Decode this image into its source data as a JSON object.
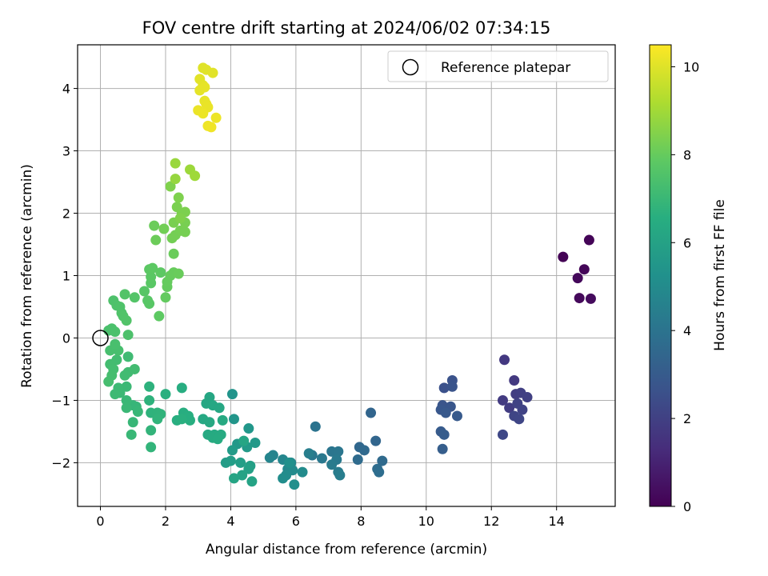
{
  "chart_data": {
    "type": "scatter",
    "title": "FOV centre drift starting at 2024/06/02 07:34:15",
    "xlabel": "Angular distance from reference (arcmin)",
    "ylabel": "Rotation from reference (arcmin)",
    "xlim": [
      -0.7,
      15.8
    ],
    "ylim": [
      -2.7,
      4.7
    ],
    "xticks": [
      "0",
      "2",
      "4",
      "6",
      "8",
      "10",
      "12",
      "14"
    ],
    "yticks": [
      "−2",
      "−1",
      "0",
      "1",
      "2",
      "3",
      "4"
    ],
    "grid": true,
    "legend": {
      "position": "top-right",
      "entries": [
        "Reference platepar"
      ]
    },
    "reference_point": {
      "x": 0,
      "y": 0
    },
    "colorbar": {
      "label": "Hours from first FF file",
      "range": [
        0,
        10.5
      ],
      "ticks": [
        "0",
        "2",
        "4",
        "6",
        "8",
        "10"
      ],
      "colormap": "viridis"
    },
    "points": [
      {
        "x": 14.2,
        "y": 1.3,
        "c": 0.05
      },
      {
        "x": 15.0,
        "y": 1.57,
        "c": 0.1
      },
      {
        "x": 14.85,
        "y": 1.1,
        "c": 0.15
      },
      {
        "x": 14.65,
        "y": 0.96,
        "c": 0.2
      },
      {
        "x": 14.7,
        "y": 0.64,
        "c": 0.25
      },
      {
        "x": 15.05,
        "y": 0.63,
        "c": 0.3
      },
      {
        "x": 12.4,
        "y": -0.35,
        "c": 1.7
      },
      {
        "x": 12.7,
        "y": -0.68,
        "c": 1.75
      },
      {
        "x": 12.35,
        "y": -1.0,
        "c": 1.8
      },
      {
        "x": 12.55,
        "y": -1.12,
        "c": 1.85
      },
      {
        "x": 12.75,
        "y": -0.9,
        "c": 1.9
      },
      {
        "x": 12.9,
        "y": -0.88,
        "c": 1.95
      },
      {
        "x": 13.1,
        "y": -0.95,
        "c": 2.0
      },
      {
        "x": 12.8,
        "y": -1.05,
        "c": 2.05
      },
      {
        "x": 12.95,
        "y": -1.15,
        "c": 2.1
      },
      {
        "x": 12.7,
        "y": -1.25,
        "c": 2.15
      },
      {
        "x": 12.85,
        "y": -1.3,
        "c": 2.2
      },
      {
        "x": 12.35,
        "y": -1.55,
        "c": 2.25
      },
      {
        "x": 10.55,
        "y": -0.8,
        "c": 2.6
      },
      {
        "x": 10.8,
        "y": -0.68,
        "c": 2.65
      },
      {
        "x": 10.8,
        "y": -0.78,
        "c": 2.7
      },
      {
        "x": 10.5,
        "y": -1.08,
        "c": 2.75
      },
      {
        "x": 10.75,
        "y": -1.1,
        "c": 2.8
      },
      {
        "x": 10.45,
        "y": -1.15,
        "c": 2.85
      },
      {
        "x": 10.6,
        "y": -1.2,
        "c": 2.9
      },
      {
        "x": 10.95,
        "y": -1.25,
        "c": 2.95
      },
      {
        "x": 10.45,
        "y": -1.5,
        "c": 3.0
      },
      {
        "x": 10.55,
        "y": -1.55,
        "c": 3.05
      },
      {
        "x": 10.5,
        "y": -1.78,
        "c": 3.1
      },
      {
        "x": 8.3,
        "y": -1.2,
        "c": 3.4
      },
      {
        "x": 8.45,
        "y": -1.65,
        "c": 3.45
      },
      {
        "x": 7.95,
        "y": -1.75,
        "c": 3.5
      },
      {
        "x": 8.1,
        "y": -1.8,
        "c": 3.55
      },
      {
        "x": 8.65,
        "y": -1.97,
        "c": 3.6
      },
      {
        "x": 7.9,
        "y": -1.95,
        "c": 3.65
      },
      {
        "x": 8.5,
        "y": -2.1,
        "c": 3.7
      },
      {
        "x": 8.55,
        "y": -2.15,
        "c": 3.75
      },
      {
        "x": 6.6,
        "y": -1.42,
        "c": 4.0
      },
      {
        "x": 7.1,
        "y": -1.82,
        "c": 4.05
      },
      {
        "x": 7.3,
        "y": -1.82,
        "c": 4.1
      },
      {
        "x": 6.5,
        "y": -1.88,
        "c": 4.15
      },
      {
        "x": 6.8,
        "y": -1.93,
        "c": 4.2
      },
      {
        "x": 7.25,
        "y": -1.95,
        "c": 4.25
      },
      {
        "x": 7.1,
        "y": -2.03,
        "c": 4.3
      },
      {
        "x": 7.3,
        "y": -2.15,
        "c": 4.35
      },
      {
        "x": 7.35,
        "y": -2.2,
        "c": 4.4
      },
      {
        "x": 6.4,
        "y": -1.85,
        "c": 4.45
      },
      {
        "x": 5.3,
        "y": -1.88,
        "c": 4.7
      },
      {
        "x": 5.2,
        "y": -1.92,
        "c": 4.75
      },
      {
        "x": 5.6,
        "y": -1.95,
        "c": 4.8
      },
      {
        "x": 5.85,
        "y": -2.0,
        "c": 4.85
      },
      {
        "x": 5.75,
        "y": -2.1,
        "c": 4.9
      },
      {
        "x": 5.9,
        "y": -2.12,
        "c": 4.95
      },
      {
        "x": 6.2,
        "y": -2.15,
        "c": 5.0
      },
      {
        "x": 5.7,
        "y": -2.2,
        "c": 5.05
      },
      {
        "x": 5.6,
        "y": -2.25,
        "c": 5.1
      },
      {
        "x": 5.95,
        "y": -2.35,
        "c": 5.15
      },
      {
        "x": 5.8,
        "y": -2.0,
        "c": 5.2
      },
      {
        "x": 4.05,
        "y": -0.9,
        "c": 5.4
      },
      {
        "x": 4.1,
        "y": -1.3,
        "c": 5.45
      },
      {
        "x": 4.55,
        "y": -1.45,
        "c": 5.5
      },
      {
        "x": 4.2,
        "y": -1.7,
        "c": 5.55
      },
      {
        "x": 4.75,
        "y": -1.68,
        "c": 5.6
      },
      {
        "x": 4.5,
        "y": -1.75,
        "c": 5.65
      },
      {
        "x": 4.05,
        "y": -1.8,
        "c": 5.7
      },
      {
        "x": 3.85,
        "y": -2.0,
        "c": 5.75
      },
      {
        "x": 4.0,
        "y": -1.97,
        "c": 5.8
      },
      {
        "x": 4.3,
        "y": -2.0,
        "c": 5.85
      },
      {
        "x": 4.6,
        "y": -2.05,
        "c": 5.9
      },
      {
        "x": 4.55,
        "y": -2.1,
        "c": 5.95
      },
      {
        "x": 4.35,
        "y": -2.2,
        "c": 6.0
      },
      {
        "x": 4.65,
        "y": -2.3,
        "c": 6.05
      },
      {
        "x": 4.1,
        "y": -2.25,
        "c": 6.1
      },
      {
        "x": 4.4,
        "y": -1.65,
        "c": 6.15
      },
      {
        "x": 3.35,
        "y": -0.95,
        "c": 6.2
      },
      {
        "x": 3.25,
        "y": -1.05,
        "c": 6.22
      },
      {
        "x": 3.45,
        "y": -1.08,
        "c": 6.24
      },
      {
        "x": 3.65,
        "y": -1.12,
        "c": 6.26
      },
      {
        "x": 3.15,
        "y": -1.3,
        "c": 6.28
      },
      {
        "x": 3.35,
        "y": -1.35,
        "c": 6.3
      },
      {
        "x": 3.75,
        "y": -1.32,
        "c": 6.32
      },
      {
        "x": 3.3,
        "y": -1.55,
        "c": 6.34
      },
      {
        "x": 3.5,
        "y": -1.55,
        "c": 6.36
      },
      {
        "x": 3.7,
        "y": -1.55,
        "c": 6.38
      },
      {
        "x": 3.45,
        "y": -1.6,
        "c": 6.4
      },
      {
        "x": 3.6,
        "y": -1.62,
        "c": 6.42
      },
      {
        "x": 2.5,
        "y": -0.8,
        "c": 6.5
      },
      {
        "x": 2.55,
        "y": -1.2,
        "c": 6.52
      },
      {
        "x": 2.7,
        "y": -1.25,
        "c": 6.54
      },
      {
        "x": 2.75,
        "y": -1.32,
        "c": 6.56
      },
      {
        "x": 2.35,
        "y": -1.32,
        "c": 6.58
      },
      {
        "x": 2.5,
        "y": -1.3,
        "c": 6.6
      },
      {
        "x": 2.0,
        "y": -0.9,
        "c": 6.62
      },
      {
        "x": 1.5,
        "y": -0.78,
        "c": 6.7
      },
      {
        "x": 1.5,
        "y": -1.0,
        "c": 6.72
      },
      {
        "x": 1.55,
        "y": -1.2,
        "c": 6.74
      },
      {
        "x": 1.75,
        "y": -1.2,
        "c": 6.76
      },
      {
        "x": 1.85,
        "y": -1.22,
        "c": 6.78
      },
      {
        "x": 1.75,
        "y": -1.3,
        "c": 6.8
      },
      {
        "x": 1.55,
        "y": -1.48,
        "c": 6.82
      },
      {
        "x": 1.55,
        "y": -1.75,
        "c": 6.84
      },
      {
        "x": 1.0,
        "y": -1.08,
        "c": 6.9
      },
      {
        "x": 1.1,
        "y": -1.1,
        "c": 6.92
      },
      {
        "x": 1.15,
        "y": -1.18,
        "c": 6.94
      },
      {
        "x": 1.0,
        "y": -1.35,
        "c": 6.96
      },
      {
        "x": 0.95,
        "y": -1.55,
        "c": 6.98
      },
      {
        "x": 0.8,
        "y": -1.0,
        "c": 7.0
      },
      {
        "x": 0.8,
        "y": -1.12,
        "c": 7.02
      },
      {
        "x": 0.8,
        "y": -0.78,
        "c": 7.04
      },
      {
        "x": 0.6,
        "y": -0.88,
        "c": 7.06
      },
      {
        "x": 0.55,
        "y": -0.8,
        "c": 7.08
      },
      {
        "x": 0.45,
        "y": -0.9,
        "c": 7.1
      },
      {
        "x": 0.85,
        "y": -0.3,
        "c": 7.15
      },
      {
        "x": 0.85,
        "y": -0.55,
        "c": 7.17
      },
      {
        "x": 0.75,
        "y": -0.6,
        "c": 7.19
      },
      {
        "x": 1.05,
        "y": -0.5,
        "c": 7.21
      },
      {
        "x": 0.5,
        "y": -0.35,
        "c": 7.23
      },
      {
        "x": 0.3,
        "y": -0.42,
        "c": 7.25
      },
      {
        "x": 0.4,
        "y": -0.5,
        "c": 7.27
      },
      {
        "x": 0.35,
        "y": -0.6,
        "c": 7.29
      },
      {
        "x": 0.25,
        "y": -0.7,
        "c": 7.31
      },
      {
        "x": 0.3,
        "y": -0.2,
        "c": 7.33
      },
      {
        "x": 0.55,
        "y": -0.2,
        "c": 7.35
      },
      {
        "x": 0.45,
        "y": -0.1,
        "c": 7.37
      },
      {
        "x": 0.25,
        "y": 0.12,
        "c": 7.4
      },
      {
        "x": 0.35,
        "y": 0.15,
        "c": 7.42
      },
      {
        "x": 0.45,
        "y": 0.1,
        "c": 7.44
      },
      {
        "x": 0.85,
        "y": 0.05,
        "c": 7.46
      },
      {
        "x": 0.4,
        "y": 0.6,
        "c": 7.48
      },
      {
        "x": 0.5,
        "y": 0.52,
        "c": 7.5
      },
      {
        "x": 0.6,
        "y": 0.5,
        "c": 7.52
      },
      {
        "x": 0.65,
        "y": 0.4,
        "c": 7.54
      },
      {
        "x": 0.7,
        "y": 0.35,
        "c": 7.56
      },
      {
        "x": 0.8,
        "y": 0.28,
        "c": 7.58
      },
      {
        "x": 0.75,
        "y": 0.7,
        "c": 7.6
      },
      {
        "x": 1.05,
        "y": 0.65,
        "c": 7.62
      },
      {
        "x": 1.35,
        "y": 0.75,
        "c": 7.7
      },
      {
        "x": 1.45,
        "y": 0.6,
        "c": 7.72
      },
      {
        "x": 1.5,
        "y": 0.55,
        "c": 7.74
      },
      {
        "x": 1.55,
        "y": 0.88,
        "c": 7.76
      },
      {
        "x": 1.55,
        "y": 0.98,
        "c": 7.78
      },
      {
        "x": 1.5,
        "y": 1.1,
        "c": 7.8
      },
      {
        "x": 1.6,
        "y": 1.12,
        "c": 7.82
      },
      {
        "x": 1.85,
        "y": 1.05,
        "c": 7.84
      },
      {
        "x": 1.8,
        "y": 0.35,
        "c": 7.86
      },
      {
        "x": 2.0,
        "y": 0.65,
        "c": 7.95
      },
      {
        "x": 2.05,
        "y": 0.82,
        "c": 7.97
      },
      {
        "x": 2.05,
        "y": 0.9,
        "c": 7.99
      },
      {
        "x": 2.15,
        "y": 1.0,
        "c": 8.01
      },
      {
        "x": 2.25,
        "y": 1.05,
        "c": 8.03
      },
      {
        "x": 2.4,
        "y": 1.03,
        "c": 8.05
      },
      {
        "x": 2.25,
        "y": 1.35,
        "c": 8.07
      },
      {
        "x": 1.65,
        "y": 1.8,
        "c": 8.09
      },
      {
        "x": 1.7,
        "y": 1.57,
        "c": 8.11
      },
      {
        "x": 1.95,
        "y": 1.75,
        "c": 8.2
      },
      {
        "x": 2.2,
        "y": 1.6,
        "c": 8.22
      },
      {
        "x": 2.3,
        "y": 1.65,
        "c": 8.24
      },
      {
        "x": 2.45,
        "y": 1.72,
        "c": 8.26
      },
      {
        "x": 2.6,
        "y": 1.7,
        "c": 8.28
      },
      {
        "x": 2.6,
        "y": 1.85,
        "c": 8.3
      },
      {
        "x": 2.25,
        "y": 1.85,
        "c": 8.32
      },
      {
        "x": 2.35,
        "y": 2.1,
        "c": 8.34
      },
      {
        "x": 2.5,
        "y": 2.0,
        "c": 8.36
      },
      {
        "x": 2.6,
        "y": 2.02,
        "c": 8.38
      },
      {
        "x": 2.4,
        "y": 2.25,
        "c": 8.4
      },
      {
        "x": 2.15,
        "y": 2.43,
        "c": 8.42
      },
      {
        "x": 2.45,
        "y": 1.92,
        "c": 8.44
      },
      {
        "x": 2.3,
        "y": 2.55,
        "c": 8.8
      },
      {
        "x": 2.3,
        "y": 2.8,
        "c": 8.85
      },
      {
        "x": 2.75,
        "y": 2.7,
        "c": 8.9
      },
      {
        "x": 2.9,
        "y": 2.6,
        "c": 8.95
      },
      {
        "x": 3.15,
        "y": 4.33,
        "c": 10.0
      },
      {
        "x": 3.25,
        "y": 4.3,
        "c": 10.02
      },
      {
        "x": 3.45,
        "y": 4.25,
        "c": 10.04
      },
      {
        "x": 3.05,
        "y": 4.15,
        "c": 10.06
      },
      {
        "x": 3.15,
        "y": 4.05,
        "c": 10.08
      },
      {
        "x": 3.05,
        "y": 3.97,
        "c": 10.1
      },
      {
        "x": 3.2,
        "y": 4.02,
        "c": 10.12
      },
      {
        "x": 3.2,
        "y": 3.8,
        "c": 10.14
      },
      {
        "x": 3.25,
        "y": 3.75,
        "c": 10.16
      },
      {
        "x": 3.3,
        "y": 3.7,
        "c": 10.18
      },
      {
        "x": 3.0,
        "y": 3.65,
        "c": 10.2
      },
      {
        "x": 3.15,
        "y": 3.6,
        "c": 10.22
      },
      {
        "x": 3.55,
        "y": 3.53,
        "c": 10.24
      },
      {
        "x": 3.3,
        "y": 3.4,
        "c": 10.26
      },
      {
        "x": 3.4,
        "y": 3.38,
        "c": 10.28
      }
    ]
  }
}
